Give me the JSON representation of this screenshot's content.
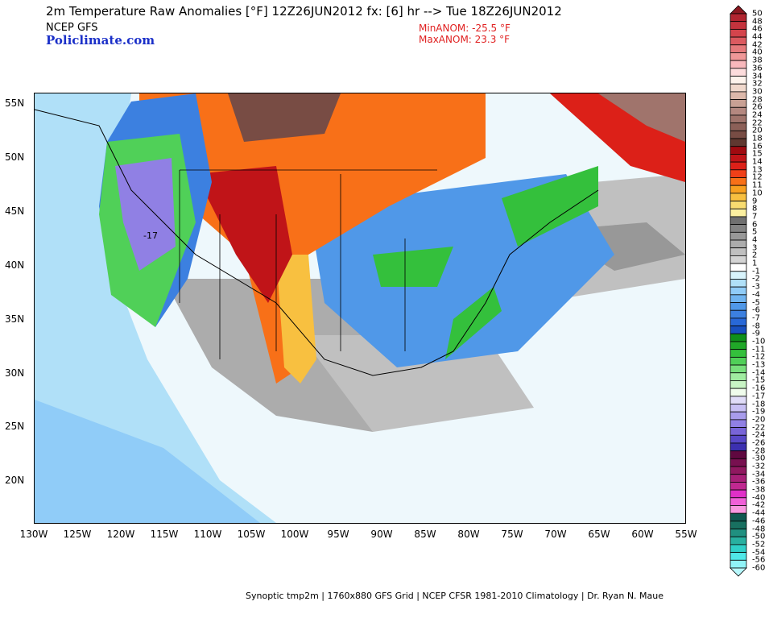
{
  "header": {
    "title": "2m Temperature Raw Anomalies [°F] 12Z26JUN2012 fx: [6] hr --> Tue 18Z26JUN2012",
    "model": "NCEP GFS",
    "site": "Policlimate.com",
    "min_anom": "MinANOM: -25.5 °F",
    "max_anom": "MaxANOM: 23.3 °F"
  },
  "map": {
    "lat_labels": [
      "55N",
      "50N",
      "45N",
      "40N",
      "35N",
      "30N",
      "25N",
      "20N"
    ],
    "lon_labels": [
      "130W",
      "125W",
      "120W",
      "115W",
      "110W",
      "105W",
      "100W",
      "95W",
      "90W",
      "85W",
      "80W",
      "75W",
      "70W",
      "65W",
      "60W",
      "55W"
    ],
    "contour_label": "-17"
  },
  "caption": "Synoptic tmp2m | 1760x880 GFS Grid | NCEP CFSR 1981-2010 Climatology | Dr. Ryan N. Maue",
  "colorbar": {
    "labels": [
      "50",
      "48",
      "46",
      "44",
      "42",
      "40",
      "38",
      "36",
      "34",
      "32",
      "30",
      "28",
      "26",
      "24",
      "22",
      "20",
      "18",
      "16",
      "15",
      "14",
      "13",
      "12",
      "11",
      "10",
      "9",
      "8",
      "7",
      "6",
      "5",
      "4",
      "3",
      "2",
      "1",
      "-1",
      "-2",
      "-3",
      "-4",
      "-5",
      "-6",
      "-7",
      "-8",
      "-9",
      "-10",
      "-11",
      "-12",
      "-13",
      "-14",
      "-15",
      "-16",
      "-17",
      "-18",
      "-19",
      "-20",
      "-22",
      "-24",
      "-26",
      "-28",
      "-30",
      "-32",
      "-34",
      "-36",
      "-38",
      "-40",
      "-42",
      "-44",
      "-46",
      "-48",
      "-50",
      "-52",
      "-54",
      "-56",
      "-60"
    ],
    "top_arrow_color": "#8c1820",
    "bottom_arrow_color": "#b8f8fc",
    "colors": [
      "#b22530",
      "#c4333d",
      "#d4444c",
      "#dc5a60",
      "#e67a7c",
      "#f09898",
      "#f8b8bc",
      "#fcdcdc",
      "#fdf3ec",
      "#f0d8cc",
      "#dcb8aa",
      "#c8a094",
      "#b48880",
      "#a0746c",
      "#8c6058",
      "#784c44",
      "#603830",
      "#a00a10",
      "#c01418",
      "#dc2018",
      "#f04018",
      "#f87018",
      "#f8a020",
      "#f8c040",
      "#f8dc70",
      "#fcf0a0",
      "#707070",
      "#848484",
      "#989898",
      "#acacac",
      "#c0c0c0",
      "#d4d4d4",
      "#ffffff",
      "#d8f4fc",
      "#b0e0f8",
      "#90ccf8",
      "#70b4f0",
      "#5098e8",
      "#3c80e0",
      "#2868d8",
      "#1850c0",
      "#10901c",
      "#20a828",
      "#34c03c",
      "#50d058",
      "#78e07c",
      "#a0eca0",
      "#c8f4c4",
      "#f0fcec",
      "#e0dcf8",
      "#c8c0f4",
      "#a89cec",
      "#9080e4",
      "#7864d8",
      "#5848c8",
      "#3c30b0",
      "#600840",
      "#781050",
      "#901860",
      "#a82078",
      "#c02890",
      "#e030c8",
      "#f060d8",
      "#f898e0",
      "#105850",
      "#187060",
      "#209080",
      "#28b0a0",
      "#30d0c8",
      "#50e8e8",
      "#90f4f8"
    ]
  }
}
